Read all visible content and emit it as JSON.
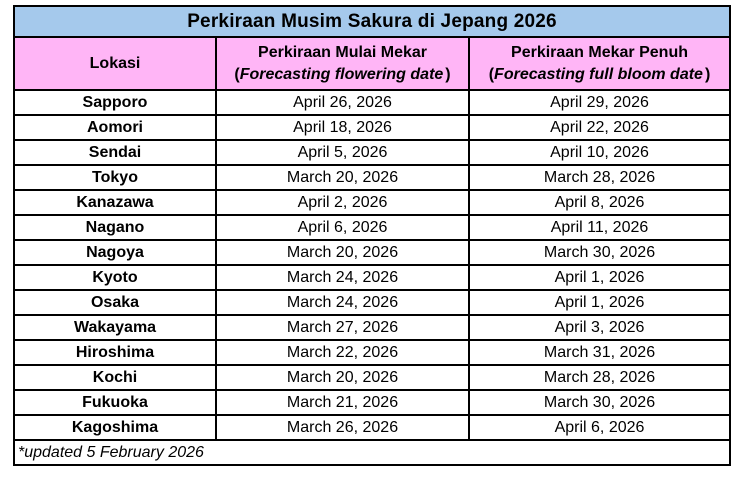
{
  "table": {
    "title": "Perkiraan Musim Sakura di Jepang 2026",
    "header": {
      "location_label": "Lokasi",
      "flowering": {
        "line1": "Perkiraan Mulai Mekar",
        "paren_open": "(",
        "line2_italic": "Forecasting flowering date",
        "paren_close": ")"
      },
      "full_bloom": {
        "line1": "Perkiraan Mekar Penuh",
        "paren_open": "(",
        "line2_italic": "Forecasting full bloom date",
        "paren_close": ")"
      }
    },
    "rows": [
      {
        "location": "Sapporo",
        "flowering": "April 26, 2026",
        "full_bloom": "April 29, 2026"
      },
      {
        "location": "Aomori",
        "flowering": "April 18, 2026",
        "full_bloom": "April 22, 2026"
      },
      {
        "location": "Sendai",
        "flowering": "April 5, 2026",
        "full_bloom": "April 10, 2026"
      },
      {
        "location": "Tokyo",
        "flowering": "March 20, 2026",
        "full_bloom": "March 28, 2026"
      },
      {
        "location": "Kanazawa",
        "flowering": "April 2, 2026",
        "full_bloom": "April 8, 2026"
      },
      {
        "location": "Nagano",
        "flowering": "April 6, 2026",
        "full_bloom": "April 11, 2026"
      },
      {
        "location": "Nagoya",
        "flowering": "March 20, 2026",
        "full_bloom": "March 30, 2026"
      },
      {
        "location": "Kyoto",
        "flowering": "March 24, 2026",
        "full_bloom": "April 1, 2026"
      },
      {
        "location": "Osaka",
        "flowering": "March 24, 2026",
        "full_bloom": "April 1, 2026"
      },
      {
        "location": "Wakayama",
        "flowering": "March 27, 2026",
        "full_bloom": "April 3, 2026"
      },
      {
        "location": "Hiroshima",
        "flowering": "March 22, 2026",
        "full_bloom": "March 31, 2026"
      },
      {
        "location": "Kochi",
        "flowering": "March 20, 2026",
        "full_bloom": "March 28, 2026"
      },
      {
        "location": "Fukuoka",
        "flowering": "March 21, 2026",
        "full_bloom": "March 30, 2026"
      },
      {
        "location": "Kagoshima",
        "flowering": "March 26, 2026",
        "full_bloom": "April 6, 2026"
      }
    ],
    "footer_note": "*updated 5 February 2026"
  },
  "colors": {
    "title_bg": "#A5C9EC",
    "header_bg": "#FFB5F6",
    "border": "#000000",
    "page_bg": "#FFFFFF"
  }
}
